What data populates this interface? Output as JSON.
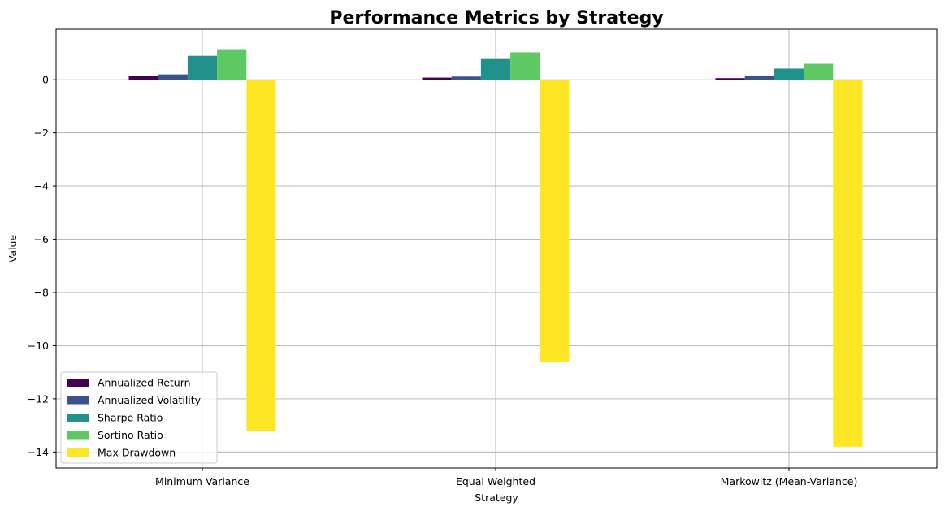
{
  "chart_data": {
    "type": "bar",
    "title": "Performance Metrics by Strategy",
    "xlabel": "Strategy",
    "ylabel": "Value",
    "categories": [
      "Minimum Variance",
      "Equal Weighted",
      "Markowitz (Mean-Variance)"
    ],
    "series": [
      {
        "name": "Annualized Return",
        "color": "#440154",
        "values": [
          0.15,
          0.08,
          0.06
        ]
      },
      {
        "name": "Annualized Volatility",
        "color": "#3b528b",
        "values": [
          0.2,
          0.12,
          0.16
        ]
      },
      {
        "name": "Sharpe Ratio",
        "color": "#21918c",
        "values": [
          0.9,
          0.78,
          0.42
        ]
      },
      {
        "name": "Sortino Ratio",
        "color": "#5ec962",
        "values": [
          1.15,
          1.03,
          0.6
        ]
      },
      {
        "name": "Max Drawdown",
        "color": "#fde725",
        "values": [
          -13.2,
          -10.6,
          -13.8
        ]
      }
    ],
    "ylim": [
      -14.6,
      1.9
    ],
    "yticks": [
      0,
      -2,
      -4,
      -6,
      -8,
      -10,
      -12,
      -14
    ],
    "ytick_labels": [
      "0",
      "−2",
      "−4",
      "−6",
      "−8",
      "−10",
      "−12",
      "−14"
    ],
    "grid": true,
    "legend_position": "lower-left"
  }
}
